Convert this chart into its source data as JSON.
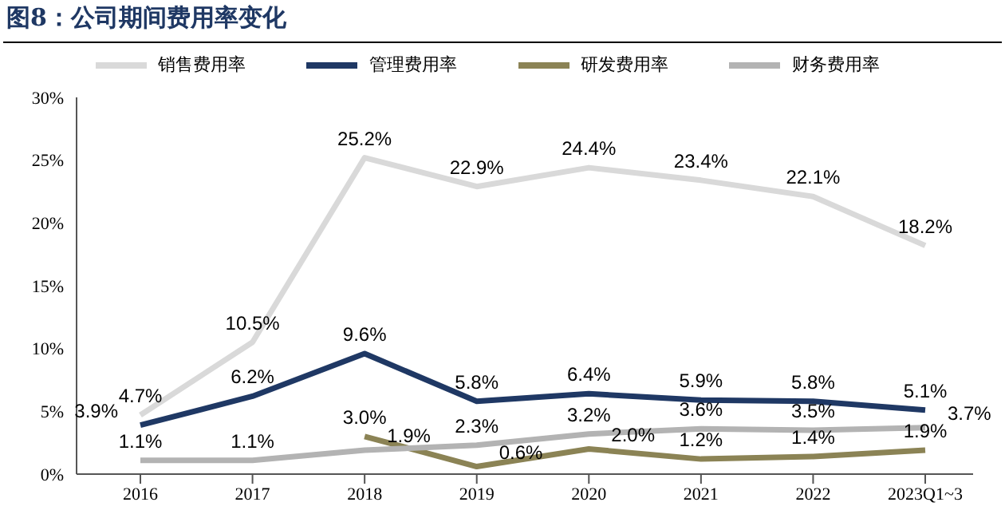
{
  "chart_data": {
    "type": "line",
    "title": "图8：公司期间费用率变化",
    "categories": [
      "2016",
      "2017",
      "2018",
      "2019",
      "2020",
      "2021",
      "2022",
      "2023Q1~3"
    ],
    "series": [
      {
        "name": "销售费用率",
        "color": "#d9d9d9",
        "values": [
          4.7,
          10.5,
          25.2,
          22.9,
          24.4,
          23.4,
          22.1,
          18.2
        ],
        "value_labels": [
          "4.7%",
          "10.5%",
          "25.2%",
          "22.9%",
          "24.4%",
          "23.4%",
          "22.1%",
          "18.2%"
        ]
      },
      {
        "name": "管理费用率",
        "color": "#1f3864",
        "values": [
          3.9,
          6.2,
          9.6,
          5.8,
          6.4,
          5.9,
          5.8,
          5.1
        ],
        "value_labels": [
          "3.9%",
          "6.2%",
          "9.6%",
          "5.8%",
          "6.4%",
          "5.9%",
          "5.8%",
          "5.1%"
        ]
      },
      {
        "name": "研发费用率",
        "color": "#8b8355",
        "values": [
          null,
          null,
          3.0,
          0.6,
          2.0,
          1.2,
          1.4,
          1.9
        ],
        "value_labels": [
          null,
          null,
          "3.0%",
          "0.6%",
          "2.0%",
          "1.2%",
          "1.4%",
          "1.9%"
        ]
      },
      {
        "name": "财务费用率",
        "color": "#b3b3b3",
        "values": [
          1.1,
          1.1,
          1.9,
          2.3,
          3.2,
          3.6,
          3.5,
          3.7
        ],
        "value_labels": [
          "1.1%",
          "1.1%",
          "1.9%",
          "2.3%",
          "3.2%",
          "3.6%",
          "3.5%",
          "3.7%"
        ]
      }
    ],
    "ylim": [
      0,
      30
    ],
    "yticks": [
      {
        "value": 0,
        "label": "0%"
      },
      {
        "value": 5,
        "label": "5%"
      },
      {
        "value": 10,
        "label": "10%"
      },
      {
        "value": 15,
        "label": "15%"
      },
      {
        "value": 20,
        "label": "20%"
      },
      {
        "value": 25,
        "label": "25%"
      },
      {
        "value": 30,
        "label": "30%"
      }
    ],
    "grid": false,
    "legend": "top",
    "marker": "none",
    "line_style": "solid"
  }
}
